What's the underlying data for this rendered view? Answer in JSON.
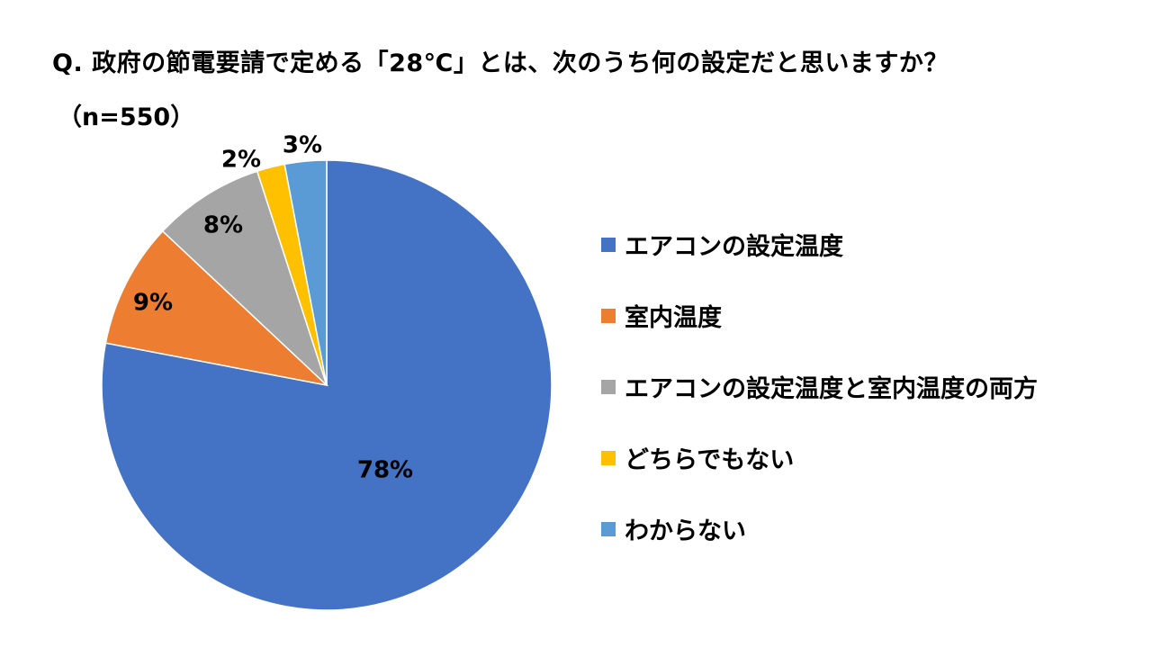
{
  "chart_data": {
    "type": "pie",
    "title": "Q. 政府の節電要請で定める「28℃」とは、次のうち何の設定だと思いますか？",
    "subtitle": "（n=550）",
    "categories": [
      "エアコンの設定温度",
      "室内温度",
      "エアコンの設定温度と室内温度の両方",
      "どちらでもない",
      "わからない"
    ],
    "values": [
      78,
      9,
      8,
      2,
      3
    ],
    "data_labels": [
      "78%",
      "9%",
      "8%",
      "2%",
      "3%"
    ],
    "colors": [
      "#4472C4",
      "#ED7D31",
      "#A5A5A5",
      "#FFC000",
      "#5B9BD5"
    ],
    "legend_position": "right",
    "start_angle": "12 o'clock, clockwise"
  }
}
